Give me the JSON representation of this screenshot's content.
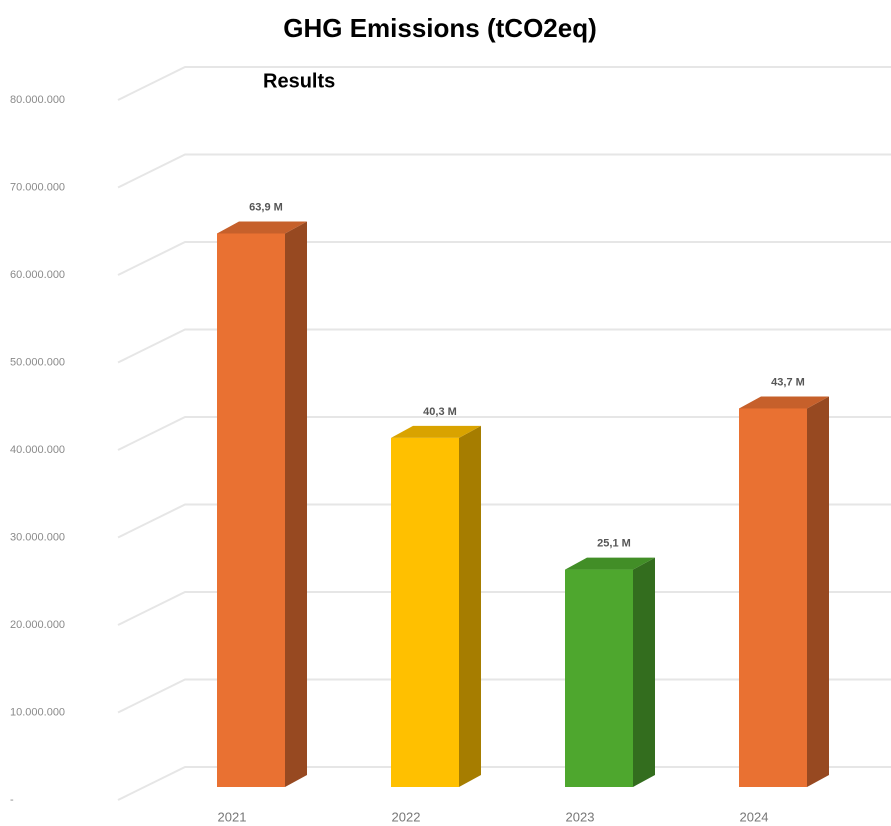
{
  "chart_data": {
    "type": "bar3d",
    "title": "GHG Emissions (tCO2eq)",
    "subtitle": "Results",
    "categories": [
      "2021",
      "2022",
      "2023",
      "2024"
    ],
    "values": [
      63900000,
      40300000,
      25100000,
      43700000
    ],
    "value_labels": [
      "63,9 M",
      "40,3 M",
      "25,1 M",
      "43,7 M"
    ],
    "colors": [
      "#E97132",
      "#FFC000",
      "#4EA72E",
      "#E97132"
    ],
    "ylim": [
      0,
      80000000
    ],
    "yticks": [
      {
        "value": 0,
        "label": "-"
      },
      {
        "value": 10000000,
        "label": "10.000.000"
      },
      {
        "value": 20000000,
        "label": "20.000.000"
      },
      {
        "value": 30000000,
        "label": "30.000.000"
      },
      {
        "value": 40000000,
        "label": "40.000.000"
      },
      {
        "value": 50000000,
        "label": "50.000.000"
      },
      {
        "value": 60000000,
        "label": "60.000.000"
      },
      {
        "value": 70000000,
        "label": "70.000.000"
      },
      {
        "value": 80000000,
        "label": "80.000.000"
      }
    ],
    "grid": true
  }
}
